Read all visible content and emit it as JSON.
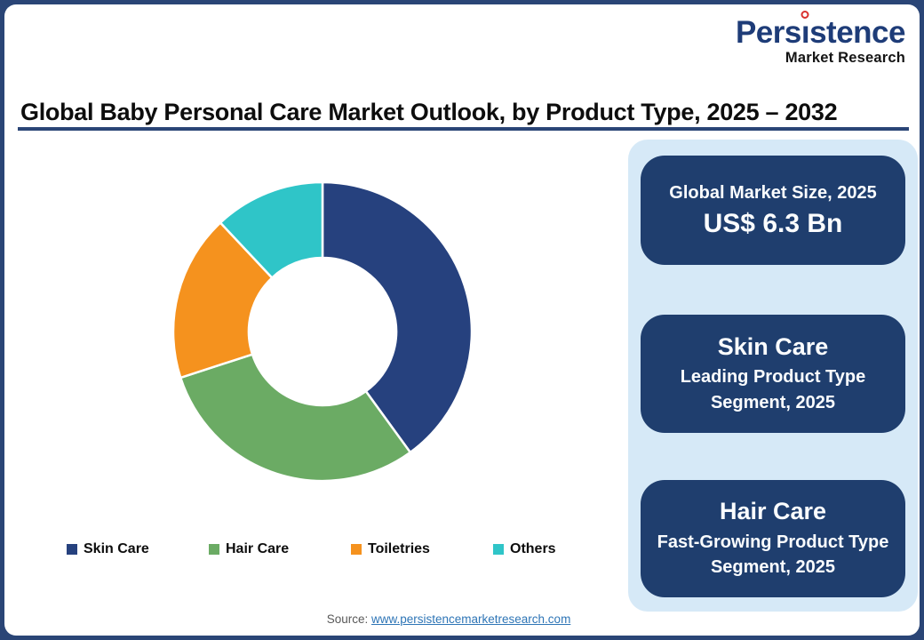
{
  "frame": {
    "border_color": "#2a4576"
  },
  "logo": {
    "part1": "Pers",
    "dotless_i": "ı",
    "part2": "stence",
    "subtitle": "Market Research",
    "text_color": "#1e3c78",
    "dot_color": "#d9302e"
  },
  "header": {
    "title": "Global Baby Personal Care Market Outlook, by Product Type, 2025 – 2032",
    "underline_color": "#2a4576"
  },
  "chart_data": {
    "type": "pie",
    "subtype": "donut",
    "title": "Global Baby Personal Care Market Outlook, by Product Type, 2025 – 2032",
    "start_angle_deg": 0,
    "direction": "clockwise",
    "inner_radius_ratio": 0.49,
    "legend_position": "bottom",
    "categories": [
      "Skin Care",
      "Hair Care",
      "Toiletries",
      "Others"
    ],
    "values": [
      40,
      30,
      18,
      12
    ],
    "unit": "% share (estimated from arc angles)",
    "segments": [
      {
        "label": "Skin Care",
        "value": 40,
        "color": "#26417e"
      },
      {
        "label": "Hair Care",
        "value": 30,
        "color": "#6bab64"
      },
      {
        "label": "Toiletries",
        "value": 18,
        "color": "#f5921e"
      },
      {
        "label": "Others",
        "value": 12,
        "color": "#2fc5c8"
      }
    ]
  },
  "sidebar": {
    "panel_bg": "#d6e9f7",
    "card_bg": "#1f3e6e",
    "cards": [
      {
        "title": "Global Market Size, 2025",
        "value": "US$ 6.3 Bn"
      },
      {
        "title": "Skin Care",
        "subtitle": "Leading Product Type Segment, 2025"
      },
      {
        "title": "Hair Care",
        "subtitle": "Fast-Growing Product Type Segment, 2025"
      }
    ]
  },
  "footer": {
    "source_label": "Source:",
    "source_link": "www.persistencemarketresearch.com",
    "link_color": "#2e75b6"
  }
}
